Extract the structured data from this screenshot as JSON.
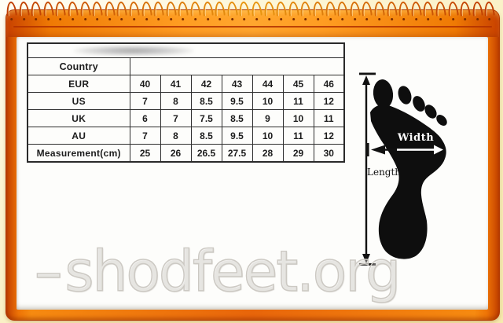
{
  "chart_data": {
    "type": "table",
    "rows": [
      {
        "label": "Country",
        "values": [
          "",
          "",
          "",
          "",
          "",
          "",
          ""
        ]
      },
      {
        "label": "EUR",
        "values": [
          "40",
          "41",
          "42",
          "43",
          "44",
          "45",
          "46"
        ]
      },
      {
        "label": "US",
        "values": [
          "7",
          "8",
          "8.5",
          "9.5",
          "10",
          "11",
          "12"
        ]
      },
      {
        "label": "UK",
        "values": [
          "6",
          "7",
          "7.5",
          "8.5",
          "9",
          "10",
          "11"
        ]
      },
      {
        "label": "AU",
        "values": [
          "7",
          "8",
          "8.5",
          "9.5",
          "10",
          "11",
          "12"
        ]
      },
      {
        "label": "Measurement(cm)",
        "values": [
          "25",
          "26",
          "26.5",
          "27.5",
          "28",
          "29",
          "30"
        ]
      }
    ]
  },
  "diagram": {
    "width_label": "Width",
    "length_label": "Length"
  },
  "watermark": {
    "dash": "–",
    "text": "shodfeet.org"
  },
  "colors": {
    "frame_orange": "#e8650a",
    "band_highlight": "#ffa62e",
    "outer_background": "#f8edba",
    "foot_black": "#0e0e0e",
    "table_border": "#2a2a2a",
    "watermark_outline": "#ccc9c3"
  }
}
